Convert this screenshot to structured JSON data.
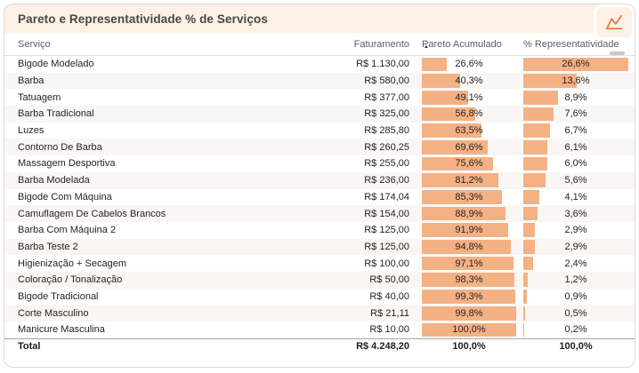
{
  "card": {
    "title": "Pareto e Representatividade % de Serviços",
    "icon": "line-chart-icon"
  },
  "colors": {
    "bar": "#F4B183",
    "header_bg": "#FCF1E4",
    "accent": "#E8794A",
    "alt_row": "#F9F6F5"
  },
  "table": {
    "columns": [
      "Serviço",
      "Faturamento",
      "Pareto Acumulado",
      "% Representatividade"
    ],
    "sort": {
      "column": "Pareto Acumulado",
      "direction": "asc",
      "glyph": "▲"
    },
    "rows": [
      {
        "servico": "Bigode Modelado",
        "faturamento": "R$ 1.130,00",
        "pareto": "26,6%",
        "pareto_pct": 26.6,
        "rep": "26,6%",
        "rep_pct": 26.6
      },
      {
        "servico": "Barba",
        "faturamento": "R$ 580,00",
        "pareto": "40,3%",
        "pareto_pct": 40.3,
        "rep": "13,6%",
        "rep_pct": 13.6
      },
      {
        "servico": "Tatuagem",
        "faturamento": "R$ 377,00",
        "pareto": "49,1%",
        "pareto_pct": 49.1,
        "rep": "8,9%",
        "rep_pct": 8.9
      },
      {
        "servico": "Barba Tradicional",
        "faturamento": "R$ 325,00",
        "pareto": "56,8%",
        "pareto_pct": 56.8,
        "rep": "7,6%",
        "rep_pct": 7.6
      },
      {
        "servico": "Luzes",
        "faturamento": "R$ 285,80",
        "pareto": "63,5%",
        "pareto_pct": 63.5,
        "rep": "6,7%",
        "rep_pct": 6.7
      },
      {
        "servico": "Contorno De Barba",
        "faturamento": "R$ 260,25",
        "pareto": "69,6%",
        "pareto_pct": 69.6,
        "rep": "6,1%",
        "rep_pct": 6.1
      },
      {
        "servico": "Massagem Desportiva",
        "faturamento": "R$ 255,00",
        "pareto": "75,6%",
        "pareto_pct": 75.6,
        "rep": "6,0%",
        "rep_pct": 6.0
      },
      {
        "servico": "Barba Modelada",
        "faturamento": "R$ 236,00",
        "pareto": "81,2%",
        "pareto_pct": 81.2,
        "rep": "5,6%",
        "rep_pct": 5.6
      },
      {
        "servico": "Bigode Com Máquina",
        "faturamento": "R$ 174,04",
        "pareto": "85,3%",
        "pareto_pct": 85.3,
        "rep": "4,1%",
        "rep_pct": 4.1
      },
      {
        "servico": "Camuflagem De Cabelos Brancos",
        "faturamento": "R$ 154,00",
        "pareto": "88,9%",
        "pareto_pct": 88.9,
        "rep": "3,6%",
        "rep_pct": 3.6
      },
      {
        "servico": "Barba Com Máquina 2",
        "faturamento": "R$ 125,00",
        "pareto": "91,9%",
        "pareto_pct": 91.9,
        "rep": "2,9%",
        "rep_pct": 2.9
      },
      {
        "servico": "Barba Teste 2",
        "faturamento": "R$ 125,00",
        "pareto": "94,8%",
        "pareto_pct": 94.8,
        "rep": "2,9%",
        "rep_pct": 2.9
      },
      {
        "servico": "Higienização + Secagem",
        "faturamento": "R$ 100,00",
        "pareto": "97,1%",
        "pareto_pct": 97.1,
        "rep": "2,4%",
        "rep_pct": 2.4
      },
      {
        "servico": "Coloração / Tonalização",
        "faturamento": "R$ 50,00",
        "pareto": "98,3%",
        "pareto_pct": 98.3,
        "rep": "1,2%",
        "rep_pct": 1.2
      },
      {
        "servico": "Bigode Tradicional",
        "faturamento": "R$ 40,00",
        "pareto": "99,3%",
        "pareto_pct": 99.3,
        "rep": "0,9%",
        "rep_pct": 0.9
      },
      {
        "servico": "Corte Masculino",
        "faturamento": "R$ 21,11",
        "pareto": "99,8%",
        "pareto_pct": 99.8,
        "rep": "0,5%",
        "rep_pct": 0.5
      },
      {
        "servico": "Manicure Masculina",
        "faturamento": "R$ 10,00",
        "pareto": "100,0%",
        "pareto_pct": 100.0,
        "rep": "0,2%",
        "rep_pct": 0.2
      }
    ],
    "total": {
      "servico": "Total",
      "faturamento": "R$ 4.248,20",
      "pareto": "100,0%",
      "rep": "100,0%"
    }
  },
  "chart_data": {
    "type": "table",
    "title": "Pareto e Representatividade % de Serviços",
    "columns": [
      "Serviço",
      "Faturamento",
      "Pareto Acumulado",
      "% Representatividade"
    ],
    "categories": [
      "Bigode Modelado",
      "Barba",
      "Tatuagem",
      "Barba Tradicional",
      "Luzes",
      "Contorno De Barba",
      "Massagem Desportiva",
      "Barba Modelada",
      "Bigode Com Máquina",
      "Camuflagem De Cabelos Brancos",
      "Barba Com Máquina 2",
      "Barba Teste 2",
      "Higienização + Secagem",
      "Coloração / Tonalização",
      "Bigode Tradicional",
      "Corte Masculino",
      "Manicure Masculina"
    ],
    "series": [
      {
        "name": "Faturamento (R$)",
        "values": [
          1130.0,
          580.0,
          377.0,
          325.0,
          285.8,
          260.25,
          255.0,
          236.0,
          174.04,
          154.0,
          125.0,
          125.0,
          100.0,
          50.0,
          40.0,
          21.11,
          10.0
        ]
      },
      {
        "name": "Pareto Acumulado (%)",
        "values": [
          26.6,
          40.3,
          49.1,
          56.8,
          63.5,
          69.6,
          75.6,
          81.2,
          85.3,
          88.9,
          91.9,
          94.8,
          97.1,
          98.3,
          99.3,
          99.8,
          100.0
        ]
      },
      {
        "name": "% Representatividade",
        "values": [
          26.6,
          13.6,
          8.9,
          7.6,
          6.7,
          6.1,
          6.0,
          5.6,
          4.1,
          3.6,
          2.9,
          2.9,
          2.4,
          1.2,
          0.9,
          0.5,
          0.2
        ]
      }
    ],
    "totals": {
      "faturamento": 4248.2,
      "pareto_acumulado": 100.0,
      "representatividade": 100.0
    },
    "bar_color": "#F4B183",
    "bar_scale_note": "Pareto bars scaled 0-100%; Representatividade bars scaled to column max (26.6%)"
  }
}
